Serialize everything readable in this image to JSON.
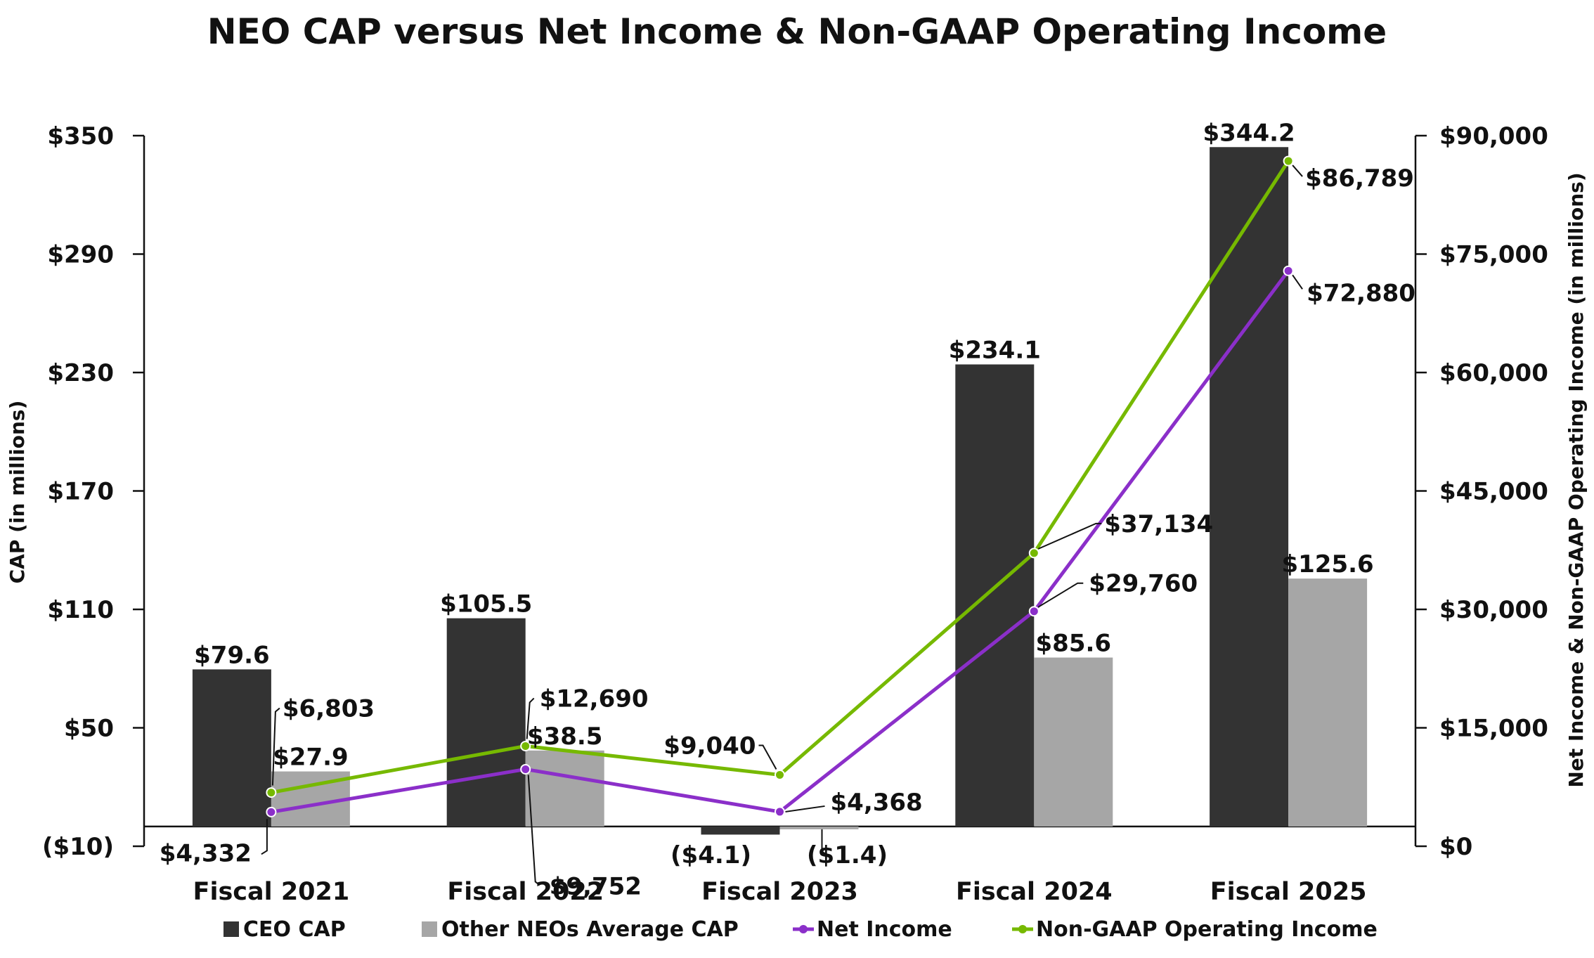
{
  "chart_data": {
    "type": "bar",
    "title": "NEO CAP versus Net Income & Non-GAAP Operating Income",
    "categories": [
      "Fiscal 2021",
      "Fiscal 2022",
      "Fiscal 2023",
      "Fiscal 2024",
      "Fiscal 2025"
    ],
    "ylabel": "CAP (in millions)",
    "y2label": "Net Income & Non-GAAP Operating Income (in millions)",
    "ylim": [
      -10,
      350
    ],
    "y2lim": [
      0,
      90000
    ],
    "yticks": [
      "($10)",
      "$50",
      "$110",
      "$170",
      "$230",
      "$290",
      "$350"
    ],
    "y2ticks": [
      "$0",
      "$15,000",
      "$30,000",
      "$45,000",
      "$60,000",
      "$75,000",
      "$90,000"
    ],
    "bar_series": [
      {
        "name": "CEO CAP",
        "color": "#333333",
        "values": [
          79.6,
          105.5,
          -4.1,
          234.1,
          344.2
        ],
        "labels": [
          "$79.6",
          "$105.5",
          "($4.1)",
          "$234.1",
          "$344.2"
        ]
      },
      {
        "name": "Other NEOs Average CAP",
        "color": "#a6a6a6",
        "values": [
          27.9,
          38.5,
          -1.4,
          85.6,
          125.6
        ],
        "labels": [
          "$27.9",
          "$38.5",
          "($1.4)",
          "$85.6",
          "$125.6"
        ]
      }
    ],
    "line_series": [
      {
        "name": "Net Income",
        "color": "#8b2fc9",
        "axis": "right",
        "values": [
          4332,
          9752,
          4368,
          29760,
          72880
        ],
        "labels": [
          "$4,332",
          "$9,752",
          "$4,368",
          "$29,760",
          "$72,880"
        ]
      },
      {
        "name": "Non-GAAP Operating Income",
        "color": "#76b900",
        "axis": "right",
        "values": [
          6803,
          12690,
          9040,
          37134,
          86789
        ],
        "labels": [
          "$6,803",
          "$12,690",
          "$9,040",
          "$37,134",
          "$86,789"
        ]
      }
    ],
    "negative_label_color": "#e8191c",
    "legend": [
      "CEO CAP",
      "Other NEOs Average CAP",
      "Net Income",
      "Non-GAAP Operating Income"
    ],
    "legend_position": "bottom"
  }
}
